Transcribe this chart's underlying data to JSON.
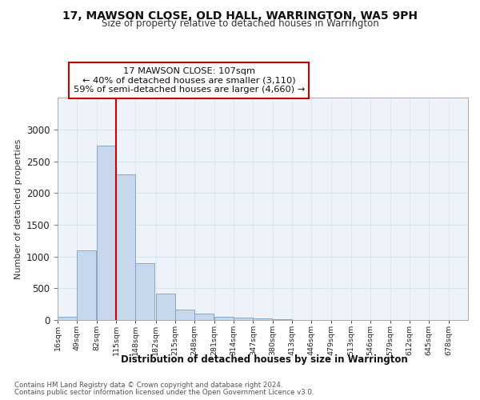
{
  "title": "17, MAWSON CLOSE, OLD HALL, WARRINGTON, WA5 9PH",
  "subtitle": "Size of property relative to detached houses in Warrington",
  "xlabel": "Distribution of detached houses by size in Warrington",
  "ylabel": "Number of detached properties",
  "bar_color": "#c8d8ec",
  "bar_edgecolor": "#7aa0c4",
  "annotation_line_color": "#cc0000",
  "grid_color": "#d8e4f0",
  "footnote1": "Contains HM Land Registry data © Crown copyright and database right 2024.",
  "footnote2": "Contains public sector information licensed under the Open Government Licence v3.0.",
  "property_size_bin_index": 2,
  "annotation_text_line1": "17 MAWSON CLOSE: 107sqm",
  "annotation_text_line2": "← 40% of detached houses are smaller (3,110)",
  "annotation_text_line3": "59% of semi-detached houses are larger (4,660) →",
  "bin_labels": [
    "16sqm",
    "49sqm",
    "82sqm",
    "115sqm",
    "148sqm",
    "182sqm",
    "215sqm",
    "248sqm",
    "281sqm",
    "314sqm",
    "347sqm",
    "380sqm",
    "413sqm",
    "446sqm",
    "479sqm",
    "513sqm",
    "546sqm",
    "579sqm",
    "612sqm",
    "645sqm",
    "678sqm"
  ],
  "bin_left_edges": [
    16,
    49,
    82,
    115,
    148,
    182,
    215,
    248,
    281,
    314,
    347,
    380,
    413,
    446,
    479,
    513,
    546,
    579,
    612,
    645,
    678
  ],
  "bar_values": [
    50,
    1100,
    2750,
    2300,
    900,
    420,
    160,
    100,
    55,
    35,
    20,
    18,
    0,
    0,
    0,
    0,
    0,
    0,
    0,
    0
  ],
  "red_line_x": 115,
  "ylim": [
    0,
    3500
  ],
  "yticks": [
    0,
    500,
    1000,
    1500,
    2000,
    2500,
    3000
  ],
  "bg_color": "#eef3f9"
}
